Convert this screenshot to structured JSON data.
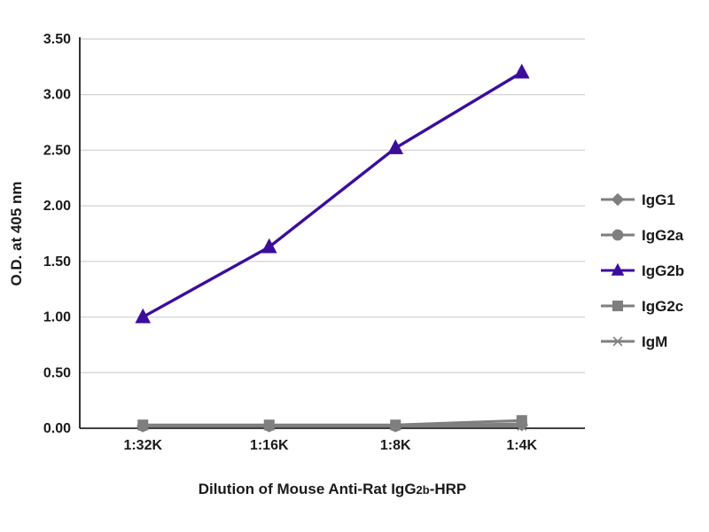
{
  "page": {
    "background": "#ffffff"
  },
  "chart_data": {
    "type": "line",
    "title": "",
    "xlabel": "Dilution of Mouse Anti-Rat IgG2b-HRP",
    "xlabel_parts": [
      {
        "text": "Dilution of Mouse Anti-Rat IgG",
        "size": "normal"
      },
      {
        "text": "2b",
        "size": "small"
      },
      {
        "text": "-HRP",
        "size": "normal"
      }
    ],
    "ylabel": "O.D. at 405 nm",
    "categories": [
      "1:32K",
      "1:16K",
      "1:8K",
      "1:4K"
    ],
    "series": [
      {
        "name": "IgG1",
        "marker": "diamond",
        "color": "#7f7f7f",
        "values": [
          0.02,
          0.02,
          0.02,
          0.03
        ]
      },
      {
        "name": "IgG2a",
        "marker": "circle",
        "color": "#7f7f7f",
        "values": [
          0.02,
          0.02,
          0.02,
          0.04
        ]
      },
      {
        "name": "IgG2b",
        "marker": "triangle",
        "color": "#3c0d9b",
        "values": [
          1.0,
          1.63,
          2.52,
          3.2
        ]
      },
      {
        "name": "IgG2c",
        "marker": "square",
        "color": "#7f7f7f",
        "values": [
          0.03,
          0.03,
          0.03,
          0.07
        ]
      },
      {
        "name": "IgM",
        "marker": "asterisk",
        "color": "#7f7f7f",
        "values": [
          0.02,
          0.02,
          0.02,
          0.02
        ]
      }
    ],
    "ylim": [
      0,
      3.5
    ],
    "ytick_step": 0.5,
    "ytick_labels": [
      "0.00",
      "0.50",
      "1.00",
      "1.50",
      "2.00",
      "2.50",
      "3.00",
      "3.50"
    ],
    "grid": true,
    "legend_position": "right",
    "colors": {
      "gridline": "#d6d6d6",
      "axis": "#000000",
      "text": "#1a1a1a"
    }
  }
}
